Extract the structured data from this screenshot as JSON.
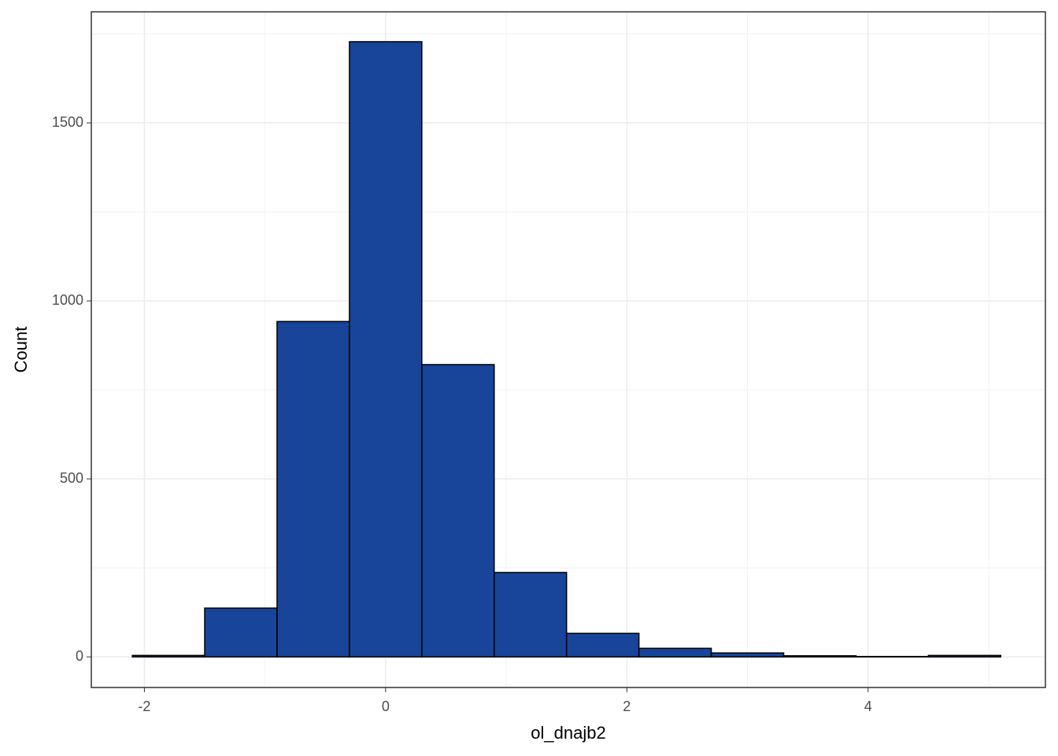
{
  "chart_data": {
    "type": "histogram",
    "x_label": "ol_dnajb2",
    "y_label": "Count",
    "bins": [
      -2.1,
      -1.5,
      -0.9,
      -0.3,
      0.3,
      0.9,
      1.5,
      2.1,
      2.7,
      3.3,
      3.9,
      4.5,
      5.1
    ],
    "values": [
      4,
      137,
      942,
      1728,
      821,
      237,
      66,
      24,
      11,
      3,
      1,
      4
    ],
    "color": "#18449a",
    "edgecolor": "#000000",
    "xlim": [
      -2.44,
      5.47
    ],
    "ylim": [
      -86,
      1812
    ],
    "xticks": [
      -2,
      0,
      2,
      4
    ],
    "yticks": [
      0,
      500,
      1000,
      1500
    ],
    "x_minor_ticks": [
      -1,
      1,
      3,
      5
    ],
    "y_minor_ticks": [
      250,
      750,
      1250,
      1750
    ],
    "grid": true
  }
}
